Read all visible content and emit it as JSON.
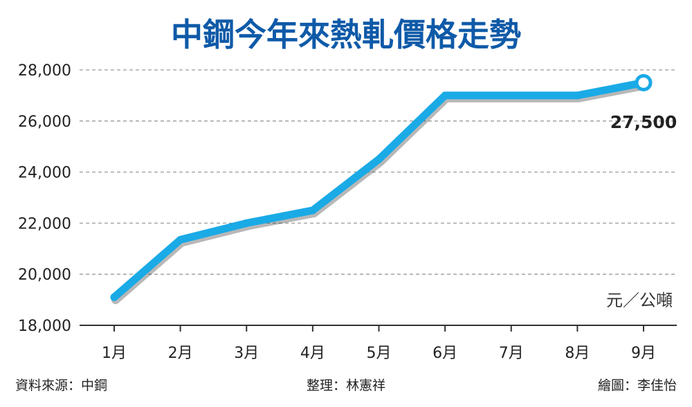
{
  "chart_data": {
    "type": "line",
    "title": "中鋼今年來熱軋價格走勢",
    "unit_label": "元／公噸",
    "categories": [
      "1月",
      "2月",
      "3月",
      "4月",
      "5月",
      "6月",
      "7月",
      "8月",
      "9月"
    ],
    "series": [
      {
        "values": [
          19100,
          21350,
          22000,
          22500,
          24500,
          27000,
          27000,
          27000,
          27500
        ],
        "color": "#1aaae6"
      }
    ],
    "yticks": [
      "18,000",
      "20,000",
      "22,000",
      "24,000",
      "26,000",
      "28,000"
    ],
    "ytick_values": [
      18000,
      20000,
      22000,
      24000,
      26000,
      28000
    ],
    "ylim": [
      18000,
      28000
    ],
    "grid": true,
    "annotation": "27,500",
    "title_color": "#0f5aa8",
    "line_color": "#1aaae6"
  },
  "footer": {
    "source": "資料來源：中鋼",
    "editor": "整理：林憲祥",
    "graphic": "繪圖：李佳怡"
  }
}
